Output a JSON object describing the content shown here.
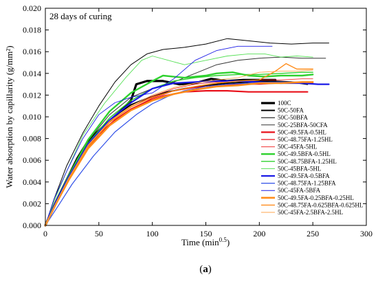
{
  "chart_data": {
    "type": "line",
    "annotation": "28 days of curing",
    "xlabel_base": "Time (min",
    "xlabel_exp": "0.5",
    "xlabel_end": ")",
    "ylabel": "Water absorption by capillarity (g/mm²)",
    "xlim": [
      0,
      300
    ],
    "ylim": [
      0,
      0.02
    ],
    "x_ticks": [
      "0",
      "50",
      "100",
      "150",
      "200",
      "250",
      "300"
    ],
    "y_ticks": [
      "0.000",
      "0.002",
      "0.004",
      "0.006",
      "0.008",
      "0.010",
      "0.012",
      "0.014",
      "0.016",
      "0.018",
      "0.020"
    ],
    "caption_open": "(",
    "caption_letter": "a",
    "caption_close": ")",
    "legend_position": "lower-right",
    "series": [
      {
        "name": "100C",
        "color": "#000000",
        "width": 3.2,
        "points": [
          [
            0,
            0
          ],
          [
            10,
            0.0022
          ],
          [
            20,
            0.0042
          ],
          [
            30,
            0.0062
          ],
          [
            40,
            0.0078
          ],
          [
            55,
            0.0092
          ],
          [
            70,
            0.0105
          ],
          [
            80,
            0.0115
          ],
          [
            85,
            0.013
          ],
          [
            95,
            0.0133
          ],
          [
            110,
            0.0133
          ],
          [
            125,
            0.013
          ],
          [
            140,
            0.0131
          ],
          [
            155,
            0.0135
          ],
          [
            170,
            0.0133
          ],
          [
            185,
            0.0134
          ],
          [
            200,
            0.0134
          ],
          [
            215,
            0.0134
          ]
        ]
      },
      {
        "name": "50C-50FA",
        "color": "#000000",
        "width": 2.0,
        "points": [
          [
            0,
            0
          ],
          [
            10,
            0.0021
          ],
          [
            20,
            0.004
          ],
          [
            35,
            0.0068
          ],
          [
            50,
            0.0087
          ],
          [
            65,
            0.0101
          ],
          [
            80,
            0.0111
          ],
          [
            95,
            0.0117
          ],
          [
            110,
            0.0122
          ],
          [
            130,
            0.0126
          ],
          [
            150,
            0.0129
          ],
          [
            170,
            0.0131
          ],
          [
            190,
            0.0132
          ],
          [
            210,
            0.0133
          ],
          [
            230,
            0.0132
          ],
          [
            245,
            0.013
          ]
        ]
      },
      {
        "name": "50C-50BFA",
        "color": "#000000",
        "width": 1.0,
        "points": [
          [
            0,
            0
          ],
          [
            8,
            0.0024
          ],
          [
            20,
            0.0055
          ],
          [
            35,
            0.0085
          ],
          [
            50,
            0.011
          ],
          [
            65,
            0.0132
          ],
          [
            80,
            0.0148
          ],
          [
            95,
            0.0158
          ],
          [
            110,
            0.0162
          ],
          [
            130,
            0.0164
          ],
          [
            150,
            0.0167
          ],
          [
            170,
            0.0172
          ],
          [
            190,
            0.017
          ],
          [
            210,
            0.0168
          ],
          [
            230,
            0.0167
          ],
          [
            250,
            0.0168
          ],
          [
            265,
            0.0168
          ]
        ]
      },
      {
        "name": "50C-25BFA-50CFA",
        "color": "#333333",
        "width": 1.0,
        "points": [
          [
            0,
            0
          ],
          [
            10,
            0.002
          ],
          [
            22,
            0.0045
          ],
          [
            40,
            0.0078
          ],
          [
            60,
            0.0102
          ],
          [
            80,
            0.0118
          ],
          [
            100,
            0.0126
          ],
          [
            120,
            0.0132
          ],
          [
            140,
            0.014
          ],
          [
            160,
            0.0148
          ],
          [
            180,
            0.0152
          ],
          [
            200,
            0.0154
          ],
          [
            220,
            0.0155
          ],
          [
            240,
            0.0154
          ],
          [
            262,
            0.0154
          ]
        ]
      },
      {
        "name": "50C-49.5FA-0.5HL",
        "color": "#e8101a",
        "width": 2.2,
        "points": [
          [
            0,
            0
          ],
          [
            10,
            0.0021
          ],
          [
            20,
            0.004
          ],
          [
            35,
            0.0066
          ],
          [
            50,
            0.0084
          ],
          [
            65,
            0.0097
          ],
          [
            80,
            0.0107
          ],
          [
            95,
            0.0114
          ],
          [
            110,
            0.0119
          ],
          [
            130,
            0.0123
          ],
          [
            150,
            0.0124
          ],
          [
            170,
            0.0124
          ],
          [
            190,
            0.0123
          ],
          [
            210,
            0.0123
          ],
          [
            230,
            0.0123
          ],
          [
            245,
            0.0123
          ]
        ]
      },
      {
        "name": "50C-48.75FA-1.25HL",
        "color": "#e8101a",
        "width": 1.3,
        "points": [
          [
            0,
            0
          ],
          [
            10,
            0.002
          ],
          [
            22,
            0.0042
          ],
          [
            40,
            0.0071
          ],
          [
            60,
            0.0093
          ],
          [
            80,
            0.0107
          ],
          [
            100,
            0.0117
          ],
          [
            120,
            0.0124
          ],
          [
            140,
            0.0127
          ],
          [
            160,
            0.0129
          ],
          [
            180,
            0.013
          ],
          [
            200,
            0.013
          ],
          [
            220,
            0.0131
          ],
          [
            240,
            0.0131
          ],
          [
            250,
            0.0131
          ]
        ]
      },
      {
        "name": "50C-45FA-5HL",
        "color": "#f03030",
        "width": 0.9,
        "points": [
          [
            0,
            0
          ],
          [
            10,
            0.002
          ],
          [
            22,
            0.0043
          ],
          [
            40,
            0.0073
          ],
          [
            60,
            0.0095
          ],
          [
            80,
            0.0109
          ],
          [
            100,
            0.0119
          ],
          [
            120,
            0.0126
          ],
          [
            140,
            0.013
          ],
          [
            160,
            0.0132
          ],
          [
            180,
            0.0133
          ],
          [
            200,
            0.0134
          ],
          [
            220,
            0.0134
          ],
          [
            240,
            0.0135
          ],
          [
            250,
            0.0135
          ]
        ]
      },
      {
        "name": "50C-49.5BFA-0.5HL",
        "color": "#2ed12e",
        "width": 2.4,
        "points": [
          [
            0,
            0
          ],
          [
            10,
            0.0022
          ],
          [
            22,
            0.0046
          ],
          [
            40,
            0.0079
          ],
          [
            60,
            0.0105
          ],
          [
            80,
            0.0122
          ],
          [
            100,
            0.0133
          ],
          [
            110,
            0.0138
          ],
          [
            130,
            0.0136
          ],
          [
            150,
            0.0138
          ],
          [
            160,
            0.014
          ],
          [
            175,
            0.0141
          ],
          [
            190,
            0.0138
          ],
          [
            205,
            0.0137
          ],
          [
            220,
            0.0138
          ],
          [
            240,
            0.0138
          ],
          [
            250,
            0.0139
          ]
        ]
      },
      {
        "name": "50C-48.75BFA-1.25HL",
        "color": "#2ed12e",
        "width": 1.4,
        "points": [
          [
            0,
            0
          ],
          [
            10,
            0.0021
          ],
          [
            22,
            0.0044
          ],
          [
            40,
            0.0076
          ],
          [
            60,
            0.0099
          ],
          [
            80,
            0.0115
          ],
          [
            100,
            0.0126
          ],
          [
            120,
            0.0133
          ],
          [
            140,
            0.0136
          ],
          [
            160,
            0.0138
          ],
          [
            180,
            0.0139
          ],
          [
            200,
            0.0139
          ],
          [
            220,
            0.014
          ],
          [
            240,
            0.0141
          ],
          [
            250,
            0.0141
          ]
        ]
      },
      {
        "name": "50C-45BFA-5HL",
        "color": "#55e055",
        "width": 0.9,
        "points": [
          [
            0,
            0
          ],
          [
            8,
            0.0022
          ],
          [
            20,
            0.005
          ],
          [
            35,
            0.0083
          ],
          [
            55,
            0.0112
          ],
          [
            75,
            0.0136
          ],
          [
            90,
            0.0152
          ],
          [
            100,
            0.0156
          ],
          [
            115,
            0.0152
          ],
          [
            130,
            0.0148
          ],
          [
            150,
            0.0152
          ],
          [
            170,
            0.0156
          ],
          [
            190,
            0.0158
          ],
          [
            205,
            0.0158
          ],
          [
            220,
            0.0155
          ],
          [
            235,
            0.0156
          ],
          [
            250,
            0.0155
          ]
        ]
      },
      {
        "name": "50C-49.5FA-0.5BFA",
        "color": "#1a1ae6",
        "width": 2.2,
        "points": [
          [
            0,
            0
          ],
          [
            10,
            0.0022
          ],
          [
            22,
            0.0045
          ],
          [
            40,
            0.0075
          ],
          [
            60,
            0.0097
          ],
          [
            80,
            0.0113
          ],
          [
            100,
            0.0126
          ],
          [
            120,
            0.0131
          ],
          [
            140,
            0.0132
          ],
          [
            160,
            0.0133
          ],
          [
            180,
            0.0133
          ],
          [
            200,
            0.0132
          ],
          [
            220,
            0.0131
          ],
          [
            240,
            0.0131
          ],
          [
            255,
            0.013
          ],
          [
            265,
            0.013
          ]
        ]
      },
      {
        "name": "50C-48.75FA-1.25BFA",
        "color": "#3050e8",
        "width": 1.2,
        "points": [
          [
            0,
            0
          ],
          [
            12,
            0.0018
          ],
          [
            25,
            0.0038
          ],
          [
            45,
            0.0064
          ],
          [
            65,
            0.0086
          ],
          [
            85,
            0.0102
          ],
          [
            100,
            0.0112
          ],
          [
            115,
            0.0119
          ],
          [
            130,
            0.0124
          ],
          [
            150,
            0.0128
          ],
          [
            170,
            0.013
          ],
          [
            190,
            0.0131
          ],
          [
            210,
            0.0132
          ],
          [
            230,
            0.0132
          ],
          [
            245,
            0.0132
          ]
        ]
      },
      {
        "name": "50C-45FA-5BFA",
        "color": "#1a1ae6",
        "width": 0.9,
        "points": [
          [
            0,
            0
          ],
          [
            8,
            0.0024
          ],
          [
            20,
            0.005
          ],
          [
            35,
            0.008
          ],
          [
            50,
            0.0102
          ],
          [
            65,
            0.0113
          ],
          [
            80,
            0.0118
          ],
          [
            100,
            0.0122
          ],
          [
            120,
            0.0135
          ],
          [
            140,
            0.0152
          ],
          [
            160,
            0.0161
          ],
          [
            180,
            0.0165
          ],
          [
            200,
            0.0165
          ],
          [
            212,
            0.0165
          ]
        ]
      },
      {
        "name": "50C-49.5FA-0.25BFA-0.25HL",
        "color": "#ff8c1a",
        "width": 2.6,
        "points": [
          [
            0,
            0
          ],
          [
            10,
            0.002
          ],
          [
            22,
            0.0042
          ],
          [
            40,
            0.0071
          ],
          [
            60,
            0.0092
          ],
          [
            80,
            0.0106
          ],
          [
            100,
            0.0115
          ],
          [
            120,
            0.0121
          ],
          [
            140,
            0.0125
          ],
          [
            160,
            0.0128
          ],
          [
            180,
            0.0129
          ],
          [
            200,
            0.0131
          ],
          [
            220,
            0.0131
          ],
          [
            240,
            0.0132
          ],
          [
            250,
            0.0132
          ]
        ]
      },
      {
        "name": "50C-48.75FA-0.625BFA-0.625HL",
        "color": "#ff8c1a",
        "width": 1.4,
        "points": [
          [
            0,
            0
          ],
          [
            10,
            0.002
          ],
          [
            22,
            0.0043
          ],
          [
            40,
            0.0073
          ],
          [
            60,
            0.0095
          ],
          [
            80,
            0.0109
          ],
          [
            100,
            0.0118
          ],
          [
            120,
            0.0124
          ],
          [
            140,
            0.0128
          ],
          [
            160,
            0.0131
          ],
          [
            180,
            0.0133
          ],
          [
            200,
            0.0134
          ],
          [
            215,
            0.0142
          ],
          [
            225,
            0.0149
          ],
          [
            235,
            0.0144
          ],
          [
            245,
            0.0144
          ],
          [
            250,
            0.0144
          ]
        ]
      },
      {
        "name": "50C-45FA-2.5BFA-2.5HL",
        "color": "#ffa64d",
        "width": 0.9,
        "points": [
          [
            0,
            0
          ],
          [
            10,
            0.0021
          ],
          [
            22,
            0.0044
          ],
          [
            40,
            0.0074
          ],
          [
            60,
            0.0096
          ],
          [
            80,
            0.011
          ],
          [
            100,
            0.012
          ],
          [
            120,
            0.0127
          ],
          [
            140,
            0.0131
          ],
          [
            160,
            0.0134
          ],
          [
            180,
            0.0136
          ],
          [
            200,
            0.0141
          ],
          [
            220,
            0.0142
          ],
          [
            235,
            0.0142
          ],
          [
            250,
            0.0143
          ]
        ]
      }
    ]
  }
}
